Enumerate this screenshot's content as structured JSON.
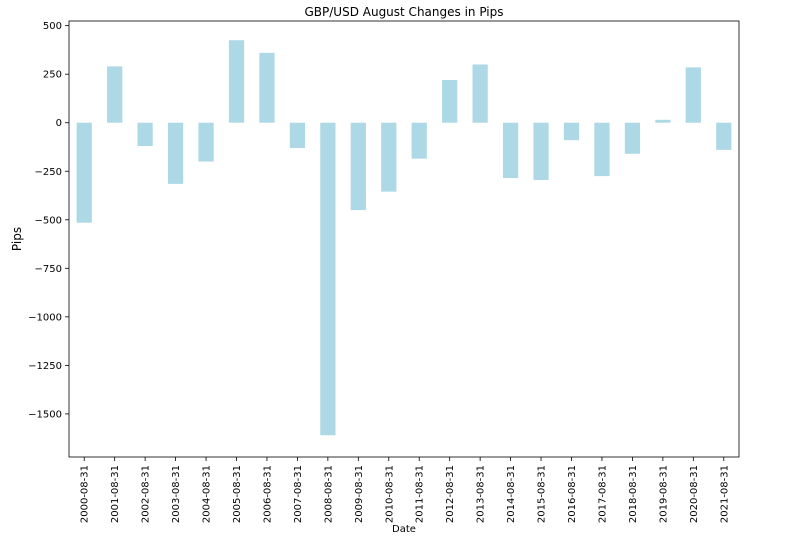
{
  "chart_data": {
    "type": "bar",
    "title": "GBP/USD August Changes in Pips",
    "xlabel": "Date",
    "ylabel": "Pips",
    "categories": [
      "2000-08-31",
      "2001-08-31",
      "2002-08-31",
      "2003-08-31",
      "2004-08-31",
      "2005-08-31",
      "2006-08-31",
      "2007-08-31",
      "2008-08-31",
      "2009-08-31",
      "2010-08-31",
      "2011-08-31",
      "2012-08-31",
      "2013-08-31",
      "2014-08-31",
      "2015-08-31",
      "2016-08-31",
      "2017-08-31",
      "2018-08-31",
      "2019-08-31",
      "2020-08-31",
      "2021-08-31"
    ],
    "values": [
      -515,
      290,
      -120,
      -315,
      -200,
      425,
      360,
      -130,
      -1610,
      -450,
      -355,
      -185,
      220,
      300,
      -285,
      -295,
      -90,
      -275,
      -160,
      15,
      285,
      -140
    ],
    "yticks": [
      500,
      250,
      0,
      -250,
      -500,
      -750,
      -1000,
      -1250,
      -1500
    ],
    "ytick_labels": [
      "500",
      "250",
      "0",
      "−250",
      "−500",
      "−750",
      "−1000",
      "−1250",
      "−1500"
    ],
    "ylim": [
      -1722,
      524
    ],
    "grid": false,
    "legend": "none",
    "bar_color": "#add8e6"
  }
}
